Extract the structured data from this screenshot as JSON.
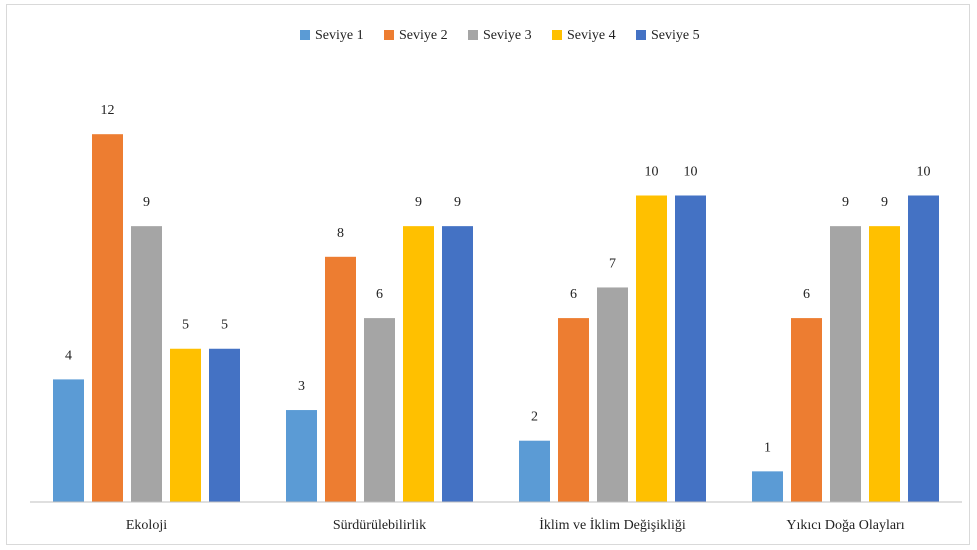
{
  "chart_data": {
    "type": "bar",
    "title": "",
    "xlabel": "",
    "ylabel": "",
    "ylim": [
      0,
      12.3
    ],
    "grid": false,
    "legend": "top-center",
    "categories": [
      "Ekoloji",
      "Sürdürülebilirlik",
      "İklim ve İklim Değişikliği",
      "Yıkıcı Doğa Olayları"
    ],
    "series": [
      {
        "name": "Seviye 1",
        "color": "#5b9bd5",
        "values": [
          4,
          3,
          2,
          1
        ]
      },
      {
        "name": "Seviye 2",
        "color": "#ed7d31",
        "values": [
          12,
          8,
          6,
          6
        ]
      },
      {
        "name": "Seviye 3",
        "color": "#a5a5a5",
        "values": [
          9,
          6,
          7,
          9
        ]
      },
      {
        "name": "Seviye 4",
        "color": "#ffc000",
        "values": [
          5,
          9,
          10,
          9
        ]
      },
      {
        "name": "Seviye 5",
        "color": "#4472c4",
        "values": [
          5,
          9,
          10,
          10
        ]
      }
    ]
  }
}
